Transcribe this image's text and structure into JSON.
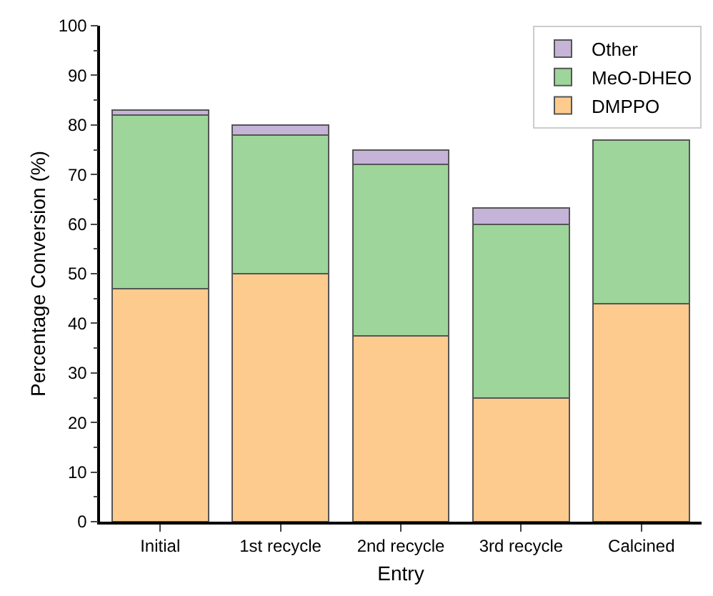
{
  "chart_data": {
    "type": "bar",
    "stacked": true,
    "xlabel": "Entry",
    "ylabel": "Percentage Conversion (%)",
    "categories": [
      "Initial",
      "1st recycle",
      "2nd recycle",
      "3rd recycle",
      "Calcined"
    ],
    "series": [
      {
        "name": "DMPPO",
        "color": "#fdcb8e",
        "values": [
          47,
          50,
          37.5,
          25,
          44
        ]
      },
      {
        "name": "MeO-DHEO",
        "color": "#9dd59a",
        "values": [
          35,
          28,
          34.5,
          35,
          33
        ]
      },
      {
        "name": "Other",
        "color": "#c5b3d8",
        "values": [
          1,
          2,
          3,
          3.3,
          null
        ]
      }
    ],
    "ylim": [
      0,
      100
    ],
    "yticks": [
      0,
      10,
      20,
      30,
      40,
      50,
      60,
      70,
      80,
      90,
      100
    ],
    "grid": false,
    "legend": "top right"
  }
}
